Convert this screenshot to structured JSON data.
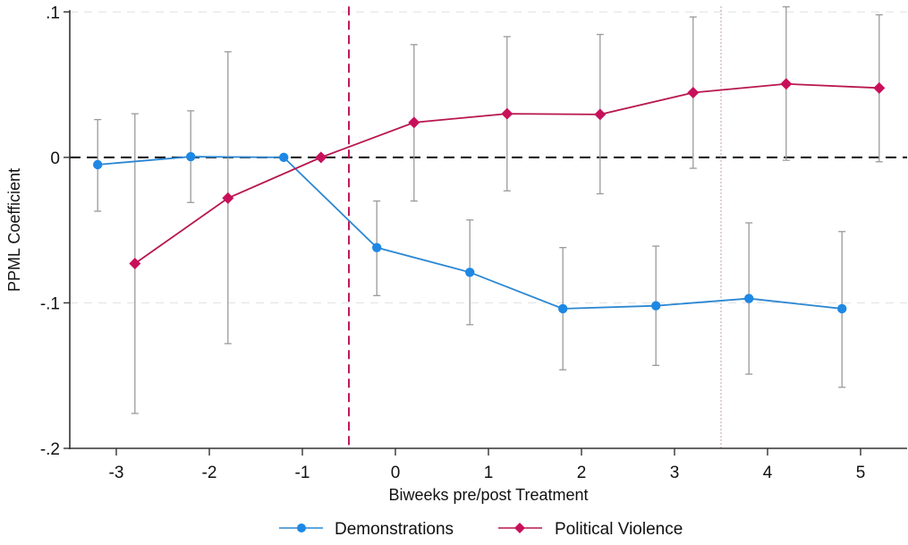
{
  "chart_data": {
    "type": "line",
    "title": "",
    "xlabel": "Biweeks pre/post Treatment",
    "ylabel": "PPML Coefficient",
    "xlim": [
      -3.5,
      5.5
    ],
    "ylim": [
      -0.2,
      0.1
    ],
    "x_ticks": [
      -3,
      -2,
      -1,
      0,
      1,
      2,
      3,
      4,
      5
    ],
    "x_tick_labels": [
      "-3",
      "-2",
      "-1",
      "0",
      "1",
      "2",
      "3",
      "4",
      "5"
    ],
    "y_ticks": [
      0.1,
      0,
      -0.1,
      -0.2
    ],
    "y_tick_labels": [
      ".1",
      "0",
      "-.1",
      "-.2"
    ],
    "grid": "horizontal dashed at y ticks",
    "reference_lines": [
      {
        "axis": "y",
        "value": 0,
        "style": "dashed",
        "color": "#111111"
      },
      {
        "axis": "x",
        "value": -0.5,
        "style": "dashed",
        "color": "#C2185B"
      },
      {
        "axis": "x",
        "value": 3.5,
        "style": "dotted",
        "color": "#B89A9A"
      }
    ],
    "legend_position": "bottom",
    "series": [
      {
        "name": "Demonstrations",
        "color": "#1E88E5",
        "marker": "circle",
        "x": [
          -3.2,
          -2.2,
          -1.2,
          -0.2,
          0.8,
          1.8,
          2.8,
          3.8,
          4.8
        ],
        "values": [
          -0.005,
          0.0005,
          0,
          -0.062,
          -0.079,
          -0.104,
          -0.102,
          -0.097,
          -0.104
        ],
        "ci_low": [
          -0.037,
          -0.031,
          null,
          -0.095,
          -0.115,
          -0.146,
          -0.143,
          -0.149,
          -0.158
        ],
        "ci_high": [
          0.026,
          0.032,
          null,
          -0.03,
          -0.043,
          -0.062,
          -0.061,
          -0.045,
          -0.051
        ]
      },
      {
        "name": "Political Violence",
        "color": "#C8105A",
        "marker": "diamond",
        "x": [
          -2.8,
          -1.8,
          -0.8,
          0.2,
          1.2,
          2.2,
          3.2,
          4.2,
          5.2
        ],
        "values": [
          -0.073,
          -0.028,
          0,
          0.024,
          0.03,
          0.0295,
          0.0445,
          0.0505,
          0.0477
        ],
        "ci_low": [
          -0.176,
          -0.128,
          null,
          -0.03,
          -0.023,
          -0.025,
          -0.0075,
          -0.002,
          -0.003
        ],
        "ci_high": [
          0.03,
          0.0726,
          null,
          0.0775,
          0.083,
          0.0845,
          0.0965,
          0.1035,
          0.098
        ]
      }
    ]
  }
}
